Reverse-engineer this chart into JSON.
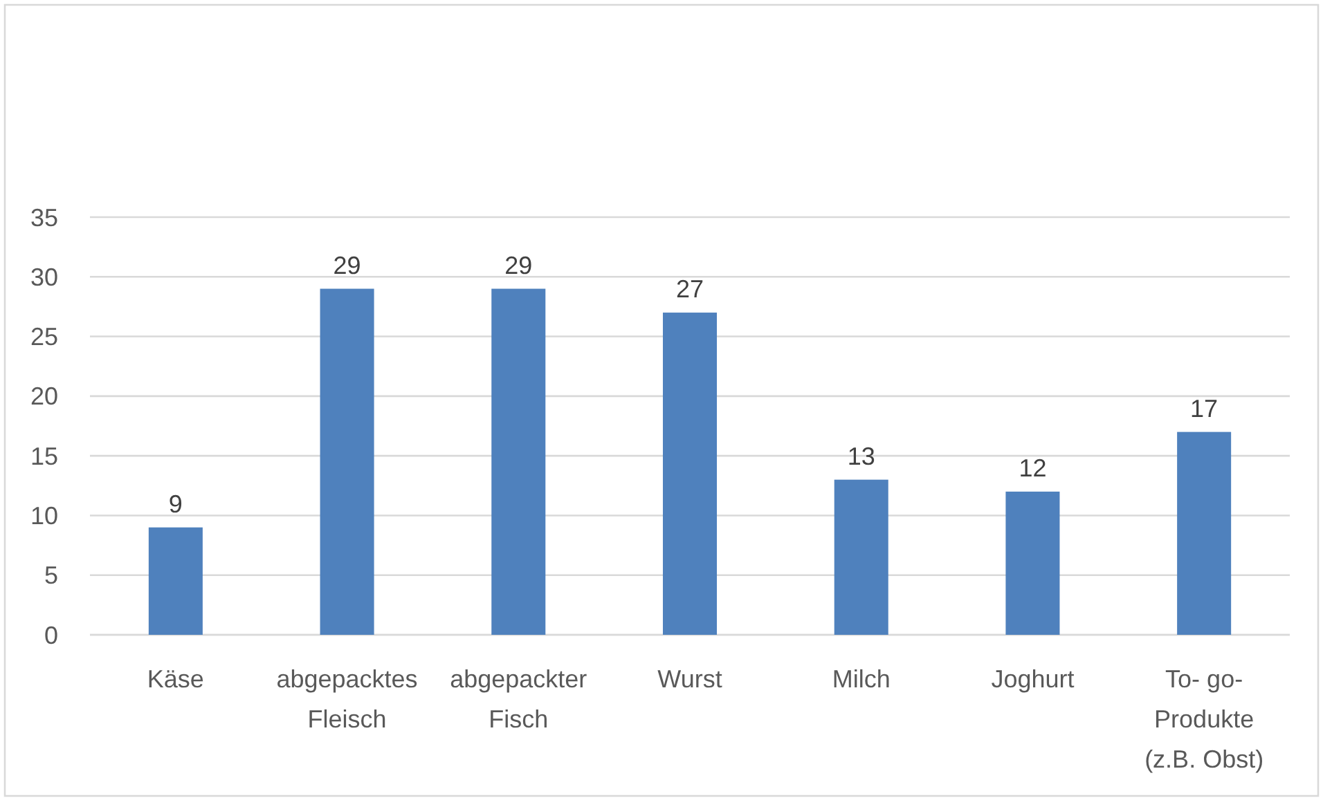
{
  "chart_data": {
    "type": "bar",
    "categories": [
      "Käse",
      "abgepacktes Fleisch",
      "abgepackter Fisch",
      "Wurst",
      "Milch",
      "Joghurt",
      "To- go- Produkte (z.B. Obst)"
    ],
    "values": [
      9,
      29,
      29,
      27,
      13,
      12,
      17
    ],
    "color": "#4f81bd",
    "ylim": [
      0,
      35
    ],
    "yticks": [
      0,
      5,
      10,
      15,
      20,
      25,
      30,
      35
    ],
    "grid": "y",
    "data_labels": true
  }
}
